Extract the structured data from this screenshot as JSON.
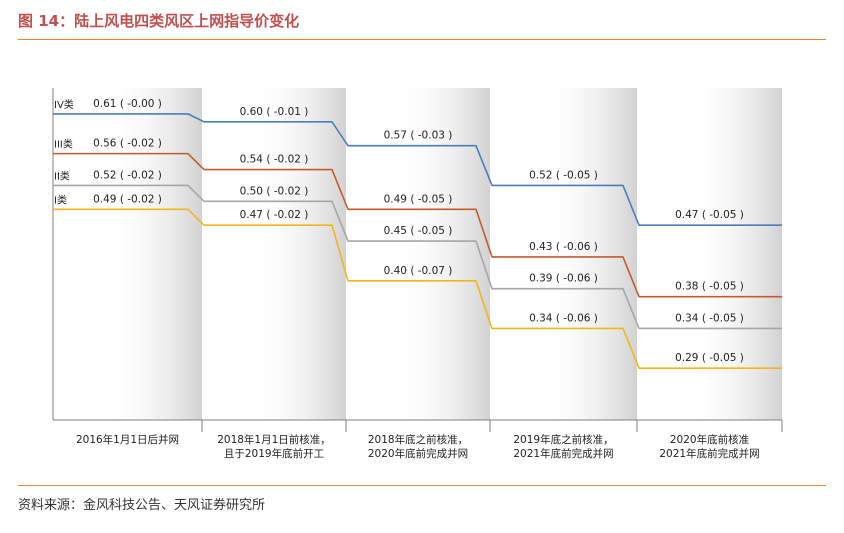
{
  "figure": {
    "title": "图 14：陆上风电四类风区上网指导价变化",
    "source": "资料来源：金风科技公告、天风证券研究所"
  },
  "chart_data": {
    "type": "line",
    "chart_style": "step",
    "title": "",
    "xlabel": "",
    "ylabel": "",
    "ylim": [
      0.25,
      0.63
    ],
    "grid": false,
    "categories": [
      "2016年1月1日后并网",
      "2018年1月1日前核准，\n且于2019年底前开工",
      "2018年底之前核准，\n2020年底前完成并网",
      "2019年底之前核准，\n2021年底前完成并网",
      "2020年底前核准\n2021年底前完成并网"
    ],
    "series": [
      {
        "name": "IV类",
        "color": "#4a7ebb",
        "values": [
          0.61,
          0.6,
          0.57,
          0.52,
          0.47
        ],
        "labels": [
          "0.61 ( -0.00 )",
          "0.60 ( -0.01 )",
          "0.57 ( -0.03 )",
          "0.52 ( -0.05 )",
          "0.47 ( -0.05 )"
        ]
      },
      {
        "name": "III类",
        "color": "#c65a2e",
        "values": [
          0.56,
          0.54,
          0.49,
          0.43,
          0.38
        ],
        "labels": [
          "0.56 ( -0.02 )",
          "0.54 ( -0.02 )",
          "0.49 ( -0.05 )",
          "0.43 ( -0.06 )",
          "0.38 ( -0.05 )"
        ]
      },
      {
        "name": "II类",
        "color": "#a6a6a6",
        "values": [
          0.52,
          0.5,
          0.45,
          0.39,
          0.34
        ],
        "labels": [
          "0.52 ( -0.02 )",
          "0.50 ( -0.02 )",
          "0.45 ( -0.05 )",
          "0.39 ( -0.06 )",
          "0.34 ( -0.05 )"
        ]
      },
      {
        "name": "I类",
        "color": "#f2b51a",
        "values": [
          0.49,
          0.47,
          0.4,
          0.34,
          0.29
        ],
        "labels": [
          "0.49 ( -0.02 )",
          "0.47 ( -0.02 )",
          "0.40 ( -0.07 )",
          "0.34 ( -0.06 )",
          "0.29 ( -0.05 )"
        ]
      }
    ]
  }
}
